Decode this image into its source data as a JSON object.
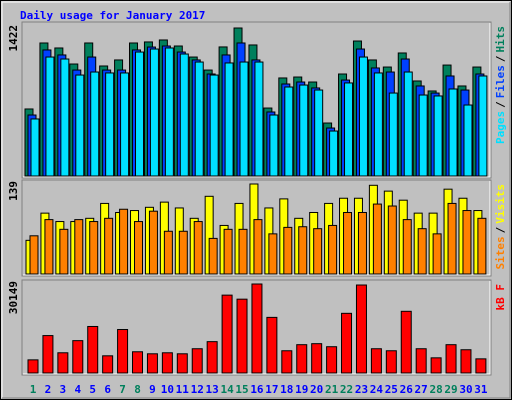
{
  "chart_data": [
    {
      "type": "bar",
      "title": "Daily usage for January 2017",
      "legend_separator": "/",
      "ylim": [
        0,
        1422
      ],
      "yticks": [
        1422
      ],
      "series": [
        {
          "name": "Hits",
          "color": "#00805c",
          "values": [
            644,
            1278,
            1230,
            1076,
            1278,
            1057,
            1115,
            1278,
            1288,
            1307,
            1249,
            1143,
            1018,
            1240,
            1422,
            1259,
            653,
            942,
            951,
            903,
            509,
            980,
            1297,
            1115,
            1047,
            1182,
            913,
            817,
            1066,
            865,
            1047
          ]
        },
        {
          "name": "Files",
          "color": "#0040ff",
          "values": [
            586,
            1211,
            1163,
            1018,
            1143,
            1018,
            1018,
            1211,
            1239,
            1249,
            1191,
            1115,
            980,
            1163,
            1278,
            1115,
            615,
            884,
            903,
            846,
            461,
            922,
            1220,
            1038,
            999,
            1124,
            865,
            797,
            961,
            826,
            980
          ]
        },
        {
          "name": "Pages",
          "color": "#00e0ff",
          "values": [
            548,
            1143,
            1124,
            970,
            999,
            990,
            990,
            1191,
            1220,
            1230,
            1172,
            1095,
            970,
            1086,
            1095,
            1095,
            586,
            855,
            874,
            826,
            432,
            894,
            1143,
            990,
            797,
            999,
            778,
            769,
            836,
            682,
            961
          ]
        }
      ]
    },
    {
      "type": "bar",
      "legend_separator": "/",
      "ylim": [
        0,
        139
      ],
      "yticks": [
        139
      ],
      "series": [
        {
          "name": "Visits",
          "color": "#ffff00",
          "values": [
            52,
            94,
            81,
            81,
            86,
            109,
            95,
            98,
            103,
            111,
            102,
            86,
            120,
            75,
            109,
            139,
            102,
            116,
            86,
            95,
            109,
            117,
            117,
            137,
            128,
            114,
            94,
            94,
            131,
            117,
            98
          ]
        },
        {
          "name": "Sites",
          "color": "#ff8000",
          "values": [
            59,
            84,
            69,
            84,
            81,
            86,
            100,
            81,
            97,
            66,
            66,
            81,
            55,
            69,
            69,
            84,
            62,
            72,
            73,
            70,
            75,
            95,
            95,
            108,
            105,
            84,
            70,
            62,
            109,
            98,
            86
          ]
        }
      ]
    },
    {
      "type": "bar",
      "ylim": [
        0,
        30149
      ],
      "yticks": [
        30149
      ],
      "categories": [
        "1",
        "2",
        "3",
        "4",
        "5",
        "6",
        "7",
        "8",
        "9",
        "10",
        "11",
        "12",
        "13",
        "14",
        "15",
        "16",
        "17",
        "18",
        "19",
        "20",
        "21",
        "22",
        "23",
        "24",
        "25",
        "26",
        "27",
        "28",
        "29",
        "30",
        "31"
      ],
      "category_colors": [
        "#00805c",
        "#0000ff",
        "#0000ff",
        "#0000ff",
        "#0000ff",
        "#0000ff",
        "#00805c",
        "#00805c",
        "#0000ff",
        "#0000ff",
        "#0000ff",
        "#0000ff",
        "#0000ff",
        "#00805c",
        "#00805c",
        "#0000ff",
        "#0000ff",
        "#0000ff",
        "#0000ff",
        "#0000ff",
        "#00805c",
        "#00805c",
        "#0000ff",
        "#0000ff",
        "#0000ff",
        "#0000ff",
        "#0000ff",
        "#00805c",
        "#00805c",
        "#0000ff",
        "#0000ff"
      ],
      "series": [
        {
          "name": "kB F",
          "color": "#ff0000",
          "values": [
            4454,
            12676,
            6852,
            10963,
            15760,
            5824,
            14732,
            7195,
            6509,
            6852,
            6509,
            8222,
            10621,
            26380,
            25010,
            30149,
            18843,
            7537,
            9593,
            9935,
            8908,
            20213,
            29806,
            8222,
            7537,
            20899,
            8222,
            5139,
            9593,
            7880,
            4796
          ]
        }
      ]
    }
  ]
}
